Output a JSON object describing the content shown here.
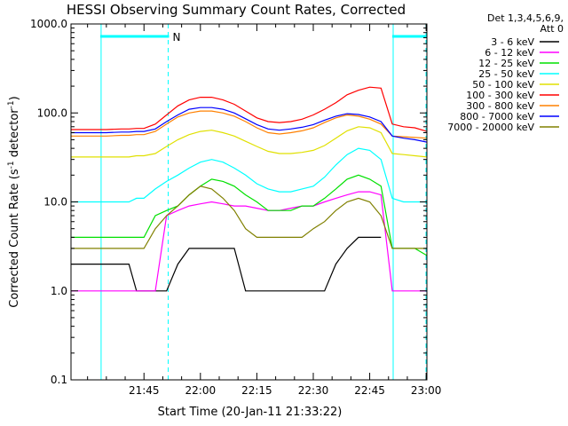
{
  "chart_data": {
    "type": "line",
    "title": "HESSI Observing Summary Count Rates, Corrected",
    "xlabel": "Start Time (20-Jan-11 21:33:22)",
    "ylabel_main": "Corrected Count Rate (s",
    "ylabel_sup1": "-1",
    "ylabel_mid": " detector",
    "ylabel_sup2": "-1",
    "ylabel_end": ")",
    "yscale": "log",
    "ylim": [
      0.1,
      1000
    ],
    "xlim_minutes": [
      -19.4,
      75.2
    ],
    "x_tick_labels": [
      "21:45",
      "22:00",
      "22:15",
      "22:30",
      "22:45",
      "23:00"
    ],
    "x_tick_minutes": [
      0,
      15,
      30,
      45,
      60,
      75
    ],
    "y_tick_labels": [
      "0.1",
      "1.0",
      "10.0",
      "100.0",
      "1000.0"
    ],
    "y_tick_values": [
      0.1,
      1,
      10,
      100,
      1000
    ],
    "legend_header": [
      "Det 1,3,4,5,6,9,",
      "Att 0"
    ],
    "legend_placement": "right",
    "annotation_label": "N",
    "night_intervals": [
      {
        "start": "21:33:22",
        "end": "21:51:40"
      },
      {
        "start": "22:51:00",
        "end": "23:10:00"
      }
    ],
    "x_minutes": [
      -19.4,
      -16,
      -10,
      -6,
      -4,
      -2,
      0,
      3,
      6,
      9,
      12,
      15,
      18,
      21,
      24,
      27,
      30,
      33,
      36,
      39,
      42,
      45,
      48,
      51,
      54,
      57,
      60,
      63,
      66,
      69,
      72,
      75.2
    ],
    "series": [
      {
        "name": "3 - 6 keV",
        "color": "#000000",
        "values": [
          2,
          2,
          2,
          2,
          2,
          1,
          1,
          1,
          1,
          2,
          3,
          3,
          3,
          3,
          3,
          1,
          1,
          1,
          1,
          1,
          1,
          1,
          1,
          2,
          3,
          4,
          4,
          4,
          null,
          null,
          null,
          null
        ]
      },
      {
        "name": "6 - 12 keV",
        "color": "#ff00ff",
        "values": [
          1,
          1,
          1,
          1,
          1,
          1,
          1,
          1,
          7,
          8,
          9,
          9.5,
          10,
          9.5,
          9,
          9,
          8.5,
          8,
          8,
          8.5,
          9,
          9,
          10,
          11,
          12,
          13,
          13,
          12,
          1,
          1,
          1,
          1
        ]
      },
      {
        "name": "12 - 25 keV",
        "color": "#00e000",
        "values": [
          4,
          4,
          4,
          4,
          4,
          4,
          4,
          7,
          8,
          9,
          12,
          15,
          18,
          17,
          15,
          12,
          10,
          8,
          8,
          8,
          9,
          9,
          11,
          14,
          18,
          20,
          18,
          15,
          3,
          3,
          3,
          2.5
        ]
      },
      {
        "name": "25 - 50 keV",
        "color": "#00ffff",
        "values": [
          10,
          10,
          10,
          10,
          10,
          11,
          11,
          14,
          17,
          20,
          24,
          28,
          30,
          28,
          24,
          20,
          16,
          14,
          13,
          13,
          14,
          15,
          19,
          26,
          34,
          40,
          38,
          30,
          11,
          10,
          10,
          10
        ]
      },
      {
        "name": "50 - 100 keV",
        "color": "#e0e000",
        "values": [
          32,
          32,
          32,
          32,
          32,
          33,
          33,
          35,
          42,
          50,
          57,
          62,
          64,
          60,
          55,
          48,
          42,
          37,
          35,
          35,
          36,
          38,
          43,
          52,
          63,
          70,
          68,
          60,
          35,
          34,
          33,
          32
        ]
      },
      {
        "name": "100 - 300 keV",
        "color": "#ff0000",
        "values": [
          65,
          65,
          65,
          66,
          66,
          67,
          67,
          75,
          95,
          120,
          140,
          150,
          150,
          140,
          125,
          105,
          88,
          80,
          78,
          80,
          85,
          95,
          110,
          130,
          160,
          180,
          195,
          190,
          75,
          70,
          68,
          62
        ]
      },
      {
        "name": "300 - 800 keV",
        "color": "#ff8000",
        "values": [
          55,
          55,
          55,
          56,
          56,
          57,
          57,
          62,
          75,
          90,
          100,
          105,
          105,
          100,
          92,
          80,
          68,
          60,
          58,
          60,
          63,
          68,
          78,
          88,
          95,
          92,
          85,
          75,
          55,
          54,
          53,
          52
        ]
      },
      {
        "name": "800 - 7000 keV",
        "color": "#0000ff",
        "values": [
          60,
          60,
          60,
          61,
          61,
          62,
          62,
          66,
          80,
          95,
          110,
          115,
          115,
          110,
          100,
          86,
          74,
          66,
          64,
          66,
          69,
          74,
          83,
          92,
          98,
          96,
          90,
          80,
          55,
          52,
          50,
          47
        ]
      },
      {
        "name": "7000 - 20000 keV",
        "color": "#808000",
        "values": [
          3,
          3,
          3,
          3,
          3,
          3,
          3,
          5,
          7,
          9,
          12,
          15,
          14,
          11,
          8,
          5,
          4,
          4,
          4,
          4,
          4,
          5,
          6,
          8,
          10,
          11,
          10,
          7,
          3,
          3,
          3,
          3
        ]
      }
    ]
  }
}
